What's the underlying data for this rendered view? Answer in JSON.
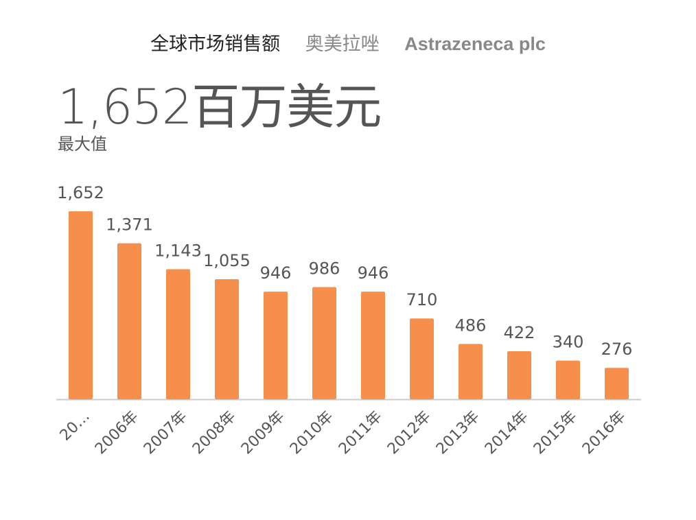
{
  "header": {
    "metric": "全球市场销售额",
    "drug": "奥美拉唑",
    "company": "Astrazeneca plc"
  },
  "summary": {
    "value": "1,652百万美元",
    "label": "最大值"
  },
  "colors": {
    "bar": "#f78f4c",
    "axis": "#cccccc",
    "label": "#555555"
  },
  "chart_data": {
    "type": "bar",
    "categories": [
      "20…",
      "2006年",
      "2007年",
      "2008年",
      "2009年",
      "2010年",
      "2011年",
      "2012年",
      "2013年",
      "2014年",
      "2015年",
      "2016年"
    ],
    "values": [
      1652,
      1371,
      1143,
      1055,
      946,
      986,
      946,
      710,
      486,
      422,
      340,
      276
    ],
    "value_labels": [
      "1,652",
      "1,371",
      "1,143",
      "1,055",
      "946",
      "986",
      "946",
      "710",
      "486",
      "422",
      "340",
      "276"
    ],
    "ylim": [
      0,
      1652
    ],
    "grid": false
  }
}
